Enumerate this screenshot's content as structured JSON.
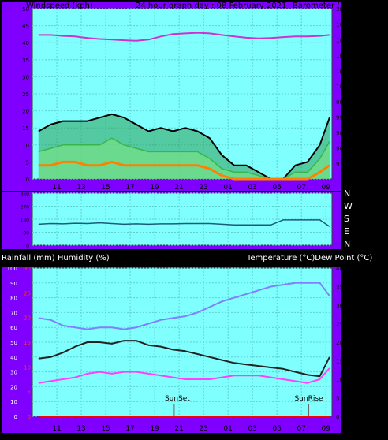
{
  "window": {
    "title": "24 hour graph day : 08 February 2021"
  },
  "colors": {
    "frame": "#7f00ff",
    "plot_bg": "#80ffff",
    "grid": "#5fd0d0",
    "gust": "#000000",
    "average": "#7fe87f",
    "lull": "#ff8000",
    "barometer": "#cc33cc",
    "direction": "#1a5c7a",
    "temperature": "#8080ff",
    "humidity": "#222222",
    "dew_point": "#ff40ff",
    "rain": "#ff0000",
    "text_dark": "#000000",
    "text_light": "#ffffff"
  },
  "labels": {
    "time_ticks": [
      "11",
      "13",
      "15",
      "17",
      "19",
      "21",
      "23",
      "01",
      "03",
      "05",
      "07",
      "09"
    ],
    "sunset": "SunSet",
    "sunrise": "SunRise"
  },
  "chart_data": [
    {
      "type": "line",
      "title": "24 hour graph day : 08 February 2021",
      "ylabel": "Windspeed (kph)",
      "y2label": "Barometer (hpa)",
      "ylim": [
        0,
        50
      ],
      "yticks": [
        "0",
        "5",
        "10",
        "15",
        "20",
        "25",
        "30",
        "35",
        "40",
        "45",
        "50"
      ],
      "y2lim": [
        970,
        1025
      ],
      "y2ticks": [
        "975",
        "980",
        "985",
        "990",
        "995",
        "1000",
        "1005",
        "1010",
        "1015",
        "1020",
        "1025"
      ],
      "xlim": [
        9.0,
        33.5
      ],
      "x": [
        9.5,
        10.5,
        11.5,
        12.5,
        13.5,
        14.5,
        15.5,
        16.5,
        17.5,
        18.5,
        19.5,
        20.5,
        21.5,
        22.5,
        23.5,
        24.5,
        25.5,
        26.5,
        27.5,
        28.5,
        29.5,
        30.5,
        31.5,
        32.5,
        33.3
      ],
      "series": [
        {
          "name": "Gust",
          "values": [
            14,
            16,
            17,
            17,
            17,
            18,
            19,
            18,
            16,
            14,
            15,
            14,
            15,
            14,
            12,
            7,
            4,
            4,
            2,
            0,
            0,
            4,
            5,
            10,
            18
          ]
        },
        {
          "name": "Average",
          "values": [
            8,
            9,
            10,
            10,
            10,
            10,
            12,
            10,
            9,
            8,
            8,
            8,
            8,
            8,
            6,
            3,
            2,
            2,
            1,
            0,
            0,
            2,
            2,
            6,
            11
          ]
        },
        {
          "name": "Lull",
          "values": [
            4,
            4,
            5,
            5,
            4,
            4,
            5,
            4,
            4,
            4,
            4,
            4,
            4,
            4,
            3,
            1,
            0,
            0,
            0,
            0,
            0,
            0,
            0,
            2,
            4
          ]
        },
        {
          "name": "Barometer",
          "axis": "right",
          "values": [
            1016.5,
            1016.5,
            1016.2,
            1016,
            1015.5,
            1015.2,
            1015,
            1014.8,
            1014.6,
            1015,
            1016,
            1016.8,
            1017,
            1017.2,
            1017,
            1016.5,
            1016,
            1015.6,
            1015.4,
            1015.5,
            1015.8,
            1016,
            1016,
            1016.2,
            1016.5
          ]
        }
      ]
    },
    {
      "type": "line",
      "yticks": [
        "360",
        "270",
        "180",
        "90",
        "0"
      ],
      "ylim": [
        0,
        360
      ],
      "right_labels": [
        "N",
        "W",
        "S",
        "E",
        "N"
      ],
      "xlim": [
        9.0,
        33.5
      ],
      "x": [
        9.5,
        10.5,
        11.5,
        12.5,
        13.5,
        14.5,
        15.5,
        16.5,
        17.5,
        18.5,
        19.5,
        20.5,
        21.5,
        22.5,
        23.5,
        24.5,
        25.5,
        26.5,
        27.5,
        28.5,
        29.5,
        30.5,
        31.5,
        32.5,
        33.3
      ],
      "series": [
        {
          "name": "Wind direction",
          "values": [
            145,
            150,
            148,
            152,
            150,
            155,
            150,
            145,
            148,
            145,
            148,
            148,
            150,
            150,
            150,
            145,
            140,
            140,
            140,
            140,
            175,
            175,
            175,
            175,
            130
          ]
        }
      ]
    },
    {
      "type": "line",
      "ylabel": "Rainfall (mm)  Humidity (%)",
      "y2label": "Temperature (°C)Dew Point (°C)",
      "ylim": [
        0,
        100
      ],
      "yticks": [
        "0",
        "10",
        "20",
        "30",
        "40",
        "50",
        "60",
        "70",
        "80",
        "90",
        "100"
      ],
      "rain_ticks": [
        "0",
        "5",
        "10",
        "15",
        "20",
        "25",
        "30"
      ],
      "rain_lim": [
        0,
        30
      ],
      "y2lim": [
        0,
        40
      ],
      "y2ticks": [
        "0",
        "5",
        "10",
        "15",
        "20",
        "25",
        "30",
        "35",
        "40"
      ],
      "xlim": [
        9.0,
        33.5
      ],
      "x": [
        9.5,
        10.5,
        11.5,
        12.5,
        13.5,
        14.5,
        15.5,
        16.5,
        17.5,
        18.5,
        19.5,
        20.5,
        21.5,
        22.5,
        23.5,
        24.5,
        25.5,
        26.5,
        27.5,
        28.5,
        29.5,
        30.5,
        31.5,
        32.5,
        33.3
      ],
      "series": [
        {
          "name": "Humidity",
          "values": [
            39,
            40,
            43,
            47,
            50,
            50,
            49,
            51,
            51,
            48,
            47,
            45,
            44,
            42,
            40,
            38,
            36,
            35,
            34,
            33,
            32,
            30,
            28,
            27,
            40
          ]
        },
        {
          "name": "Temperature",
          "axis": "right",
          "values": [
            26.5,
            26,
            24.5,
            24,
            23.5,
            24,
            24,
            23.5,
            24,
            25,
            26,
            26.5,
            27,
            28,
            29.5,
            31,
            32,
            33,
            34,
            35,
            35.5,
            36,
            36,
            36,
            32.5
          ]
        },
        {
          "name": "Dew Point",
          "axis": "right",
          "values": [
            9,
            9.5,
            10,
            10.5,
            11.5,
            12,
            11.5,
            12,
            12,
            11.5,
            11,
            10.5,
            10,
            10,
            10,
            10.5,
            11,
            11,
            11,
            10.5,
            10,
            9.5,
            9,
            10,
            13
          ]
        },
        {
          "name": "Rainfall",
          "axis": "rain",
          "values": [
            0,
            0,
            0,
            0,
            0,
            0,
            0,
            0,
            0,
            0,
            0,
            0,
            0,
            0,
            0,
            0,
            0,
            0,
            0,
            0,
            0,
            0,
            0,
            0,
            0
          ]
        }
      ],
      "markers": [
        {
          "label": "SunSet",
          "x": 20.6
        },
        {
          "label": "SunRise",
          "x": 31.6
        }
      ]
    }
  ]
}
